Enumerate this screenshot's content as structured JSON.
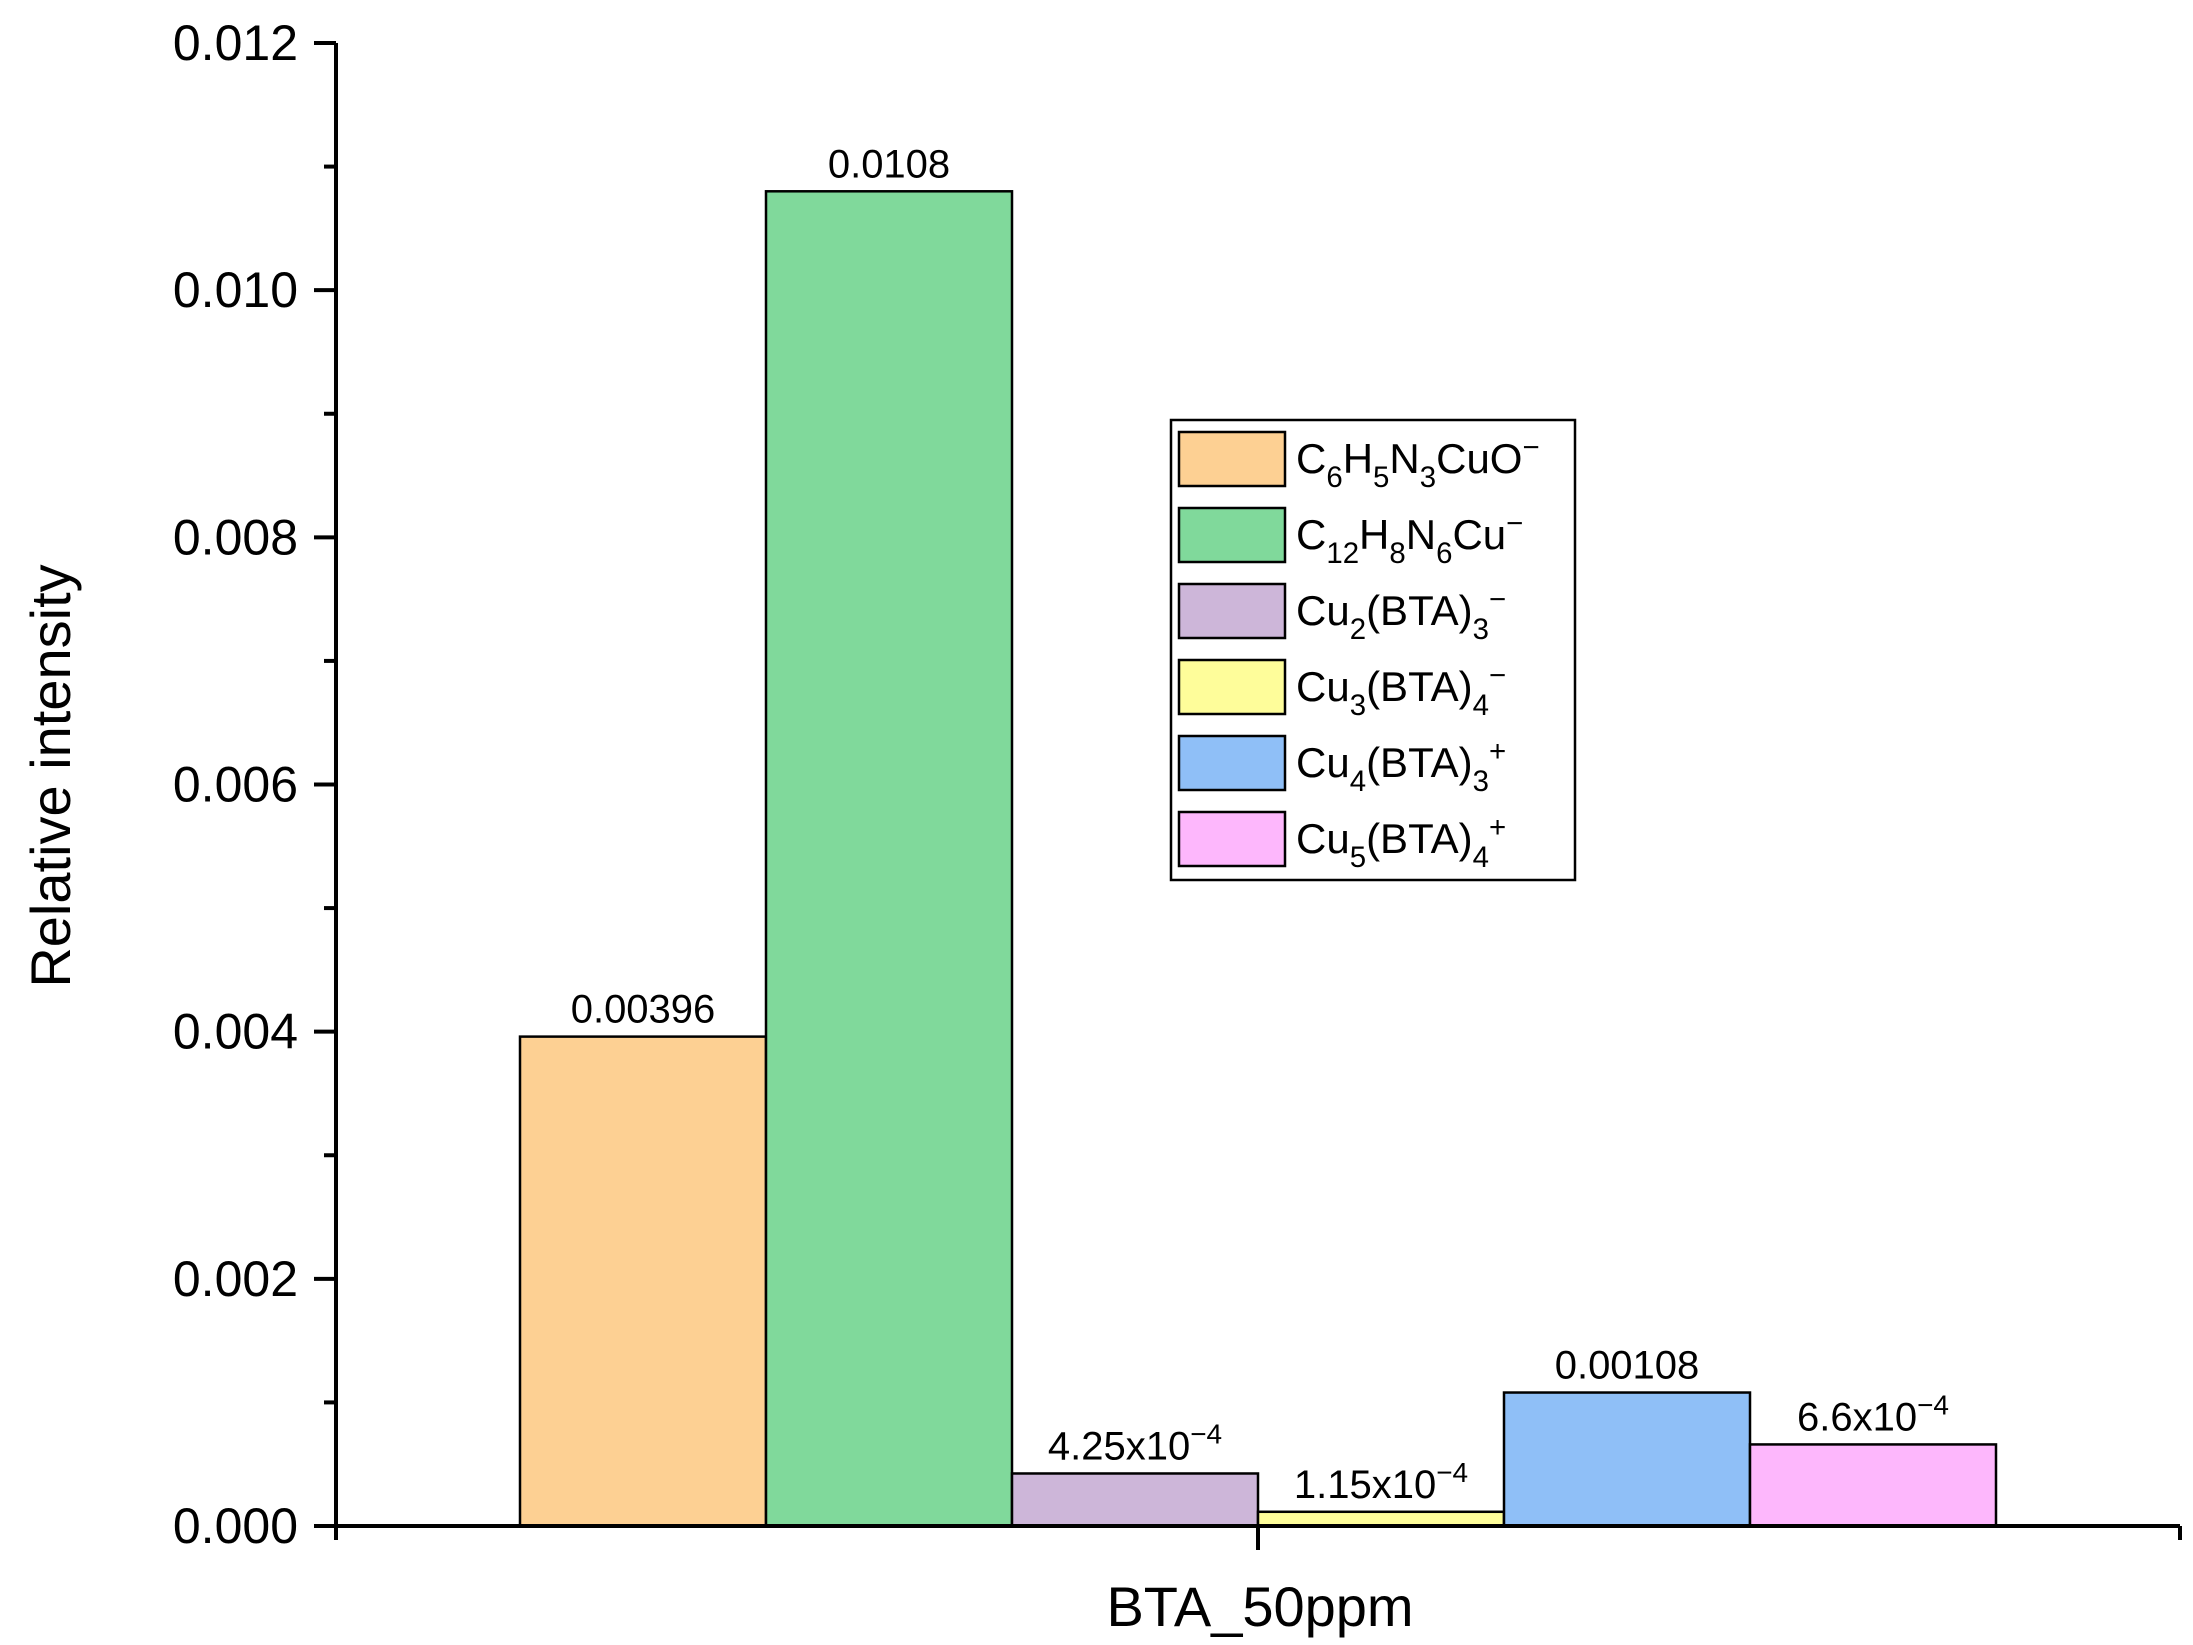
{
  "chart_data": {
    "type": "bar",
    "categories": [
      "BTA_50ppm"
    ],
    "xlabel": "BTA_50ppm",
    "ylabel": "Relative intensity",
    "ylim": [
      0,
      0.012
    ],
    "yticks": [
      "0.000",
      "0.002",
      "0.004",
      "0.006",
      "0.008",
      "0.010",
      "0.012"
    ],
    "legend_position": "upper-right",
    "series": [
      {
        "name": "C6H5N3CuO−",
        "values": [
          0.00396
        ],
        "label": "0.00396",
        "color": "#fdd093",
        "name_parts": [
          [
            "C",
            ""
          ],
          [
            "6",
            "sub"
          ],
          [
            "H",
            ""
          ],
          [
            "5",
            "sub"
          ],
          [
            "N",
            ""
          ],
          [
            "3",
            "sub"
          ],
          [
            "CuO",
            ""
          ],
          [
            "−",
            "sup"
          ]
        ],
        "label_parts": [
          [
            "0.00396",
            ""
          ]
        ]
      },
      {
        "name": "C12H8N6Cu−",
        "values": [
          0.0108
        ],
        "label": "0.0108",
        "color": "#80d99b",
        "name_parts": [
          [
            "C",
            ""
          ],
          [
            "12",
            "sub"
          ],
          [
            "H",
            ""
          ],
          [
            "8",
            "sub"
          ],
          [
            "N",
            ""
          ],
          [
            "6",
            "sub"
          ],
          [
            "Cu",
            ""
          ],
          [
            "−",
            "sup"
          ]
        ],
        "label_parts": [
          [
            "0.0108",
            ""
          ]
        ]
      },
      {
        "name": "Cu2(BTA)3−",
        "values": [
          0.000425
        ],
        "label": "4.25x10−4",
        "color": "#cdb6d9",
        "name_parts": [
          [
            "Cu",
            ""
          ],
          [
            "2",
            "sub"
          ],
          [
            "(BTA)",
            ""
          ],
          [
            "3",
            "sub"
          ],
          [
            "−",
            "sup"
          ]
        ],
        "label_parts": [
          [
            "4.25x10",
            ""
          ],
          [
            "−4",
            "sup"
          ]
        ]
      },
      {
        "name": "Cu3(BTA)4−",
        "values": [
          0.000115
        ],
        "label": "1.15x10−4",
        "color": "#fefd9a",
        "name_parts": [
          [
            "Cu",
            ""
          ],
          [
            "3",
            "sub"
          ],
          [
            "(BTA)",
            ""
          ],
          [
            "4",
            "sub"
          ],
          [
            "−",
            "sup"
          ]
        ],
        "label_parts": [
          [
            "1.15x10",
            ""
          ],
          [
            "−4",
            "sup"
          ]
        ]
      },
      {
        "name": "Cu4(BTA)3+",
        "values": [
          0.00108
        ],
        "label": "0.00108",
        "color": "#8fbff7",
        "name_parts": [
          [
            "Cu",
            ""
          ],
          [
            "4",
            "sub"
          ],
          [
            "(BTA)",
            ""
          ],
          [
            "3",
            "sub"
          ],
          [
            "+",
            "sup"
          ]
        ],
        "label_parts": [
          [
            "0.00108",
            ""
          ]
        ]
      },
      {
        "name": "Cu5(BTA)4+",
        "values": [
          0.00066
        ],
        "label": "6.6x10−4",
        "color": "#fdb7fc",
        "name_parts": [
          [
            "Cu",
            ""
          ],
          [
            "5",
            "sub"
          ],
          [
            "(BTA)",
            ""
          ],
          [
            "4",
            "sub"
          ],
          [
            "+",
            "sup"
          ]
        ],
        "label_parts": [
          [
            "6.6x10",
            ""
          ],
          [
            "−4",
            "sup"
          ]
        ]
      }
    ]
  }
}
